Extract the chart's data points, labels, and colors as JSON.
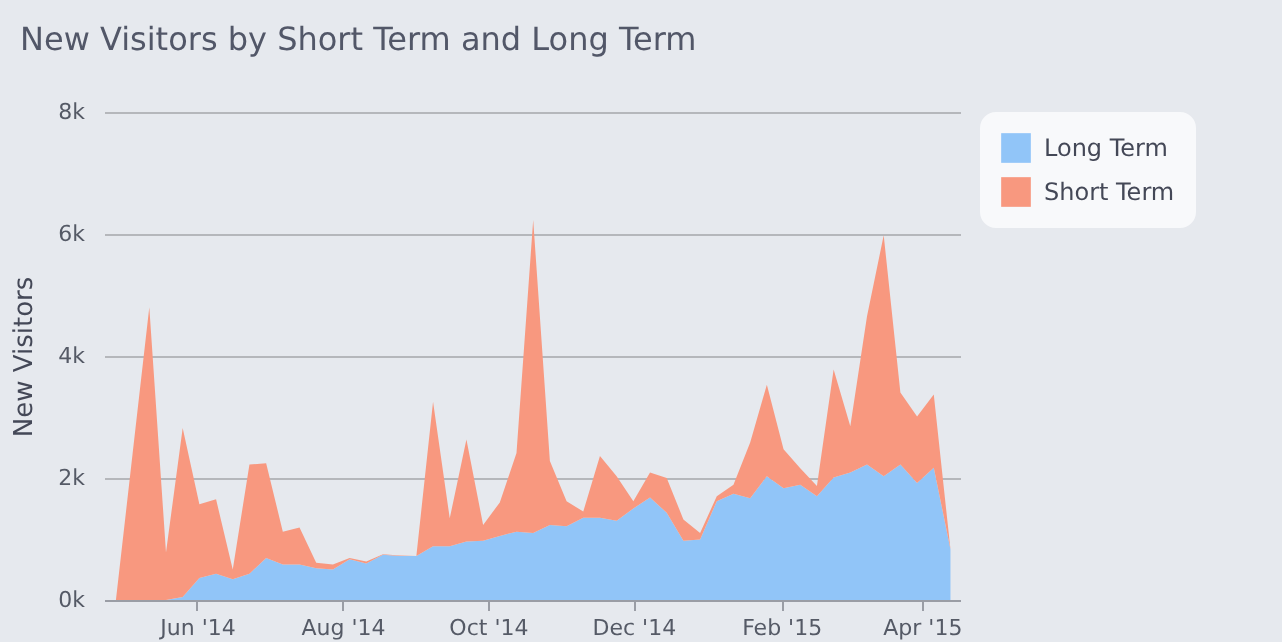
{
  "chart_data": {
    "type": "area",
    "stacked": true,
    "title": "New Visitors by Short Term and Long Term",
    "ylabel": "New Visitors",
    "x": [
      "2014-04-28",
      "2014-05-05",
      "2014-05-12",
      "2014-05-19",
      "2014-05-26",
      "2014-06-02",
      "2014-06-09",
      "2014-06-16",
      "2014-06-23",
      "2014-06-30",
      "2014-07-07",
      "2014-07-14",
      "2014-07-21",
      "2014-07-28",
      "2014-08-04",
      "2014-08-11",
      "2014-08-18",
      "2014-08-25",
      "2014-09-01",
      "2014-09-08",
      "2014-09-15",
      "2014-09-22",
      "2014-09-29",
      "2014-10-06",
      "2014-10-13",
      "2014-10-20",
      "2014-10-27",
      "2014-11-03",
      "2014-11-10",
      "2014-11-17",
      "2014-11-24",
      "2014-12-01",
      "2014-12-08",
      "2014-12-15",
      "2014-12-22",
      "2014-12-29",
      "2015-01-05",
      "2015-01-12",
      "2015-01-19",
      "2015-01-26",
      "2015-02-02",
      "2015-02-09",
      "2015-02-16",
      "2015-02-23",
      "2015-03-02",
      "2015-03-09",
      "2015-03-16",
      "2015-03-23",
      "2015-03-30",
      "2015-04-06",
      "2015-04-13"
    ],
    "series": [
      {
        "name": "Long Term",
        "color": "#91c5f8",
        "values": [
          0,
          0,
          0,
          0,
          50,
          360,
          430,
          340,
          430,
          690,
          580,
          580,
          520,
          500,
          670,
          600,
          740,
          720,
          720,
          880,
          880,
          960,
          970,
          1050,
          1120,
          1100,
          1230,
          1210,
          1350,
          1350,
          1300,
          1500,
          1680,
          1430,
          970,
          990,
          1620,
          1740,
          1670,
          2030,
          1830,
          1890,
          1700,
          2010,
          2090,
          2220,
          2030,
          2220,
          1920,
          2170,
          830
        ]
      },
      {
        "name": "Short Term",
        "color": "#f8987f",
        "values": [
          0,
          2400,
          4800,
          780,
          2770,
          1210,
          1220,
          160,
          1790,
          1550,
          540,
          610,
          90,
          80,
          20,
          30,
          10,
          10,
          0,
          2370,
          460,
          1670,
          260,
          550,
          1290,
          5130,
          1050,
          410,
          100,
          1010,
          730,
          120,
          410,
          570,
          350,
          110,
          80,
          150,
          910,
          1500,
          640,
          270,
          170,
          1770,
          760,
          2430,
          3950,
          1180,
          1090,
          1200,
          0
        ]
      }
    ],
    "xlim": [
      "2014-04-23",
      "2015-04-17"
    ],
    "xticks": [
      {
        "value": "2014-06-01",
        "label": "Jun '14"
      },
      {
        "value": "2014-08-01",
        "label": "Aug '14"
      },
      {
        "value": "2014-10-01",
        "label": "Oct '14"
      },
      {
        "value": "2014-12-01",
        "label": "Dec '14"
      },
      {
        "value": "2015-02-01",
        "label": "Feb '15"
      },
      {
        "value": "2015-04-01",
        "label": "Apr '15"
      }
    ],
    "ylim": [
      0,
      8000
    ],
    "yticks": [
      {
        "value": 0,
        "label": "0k"
      },
      {
        "value": 2000,
        "label": "2k"
      },
      {
        "value": 4000,
        "label": "4k"
      },
      {
        "value": 6000,
        "label": "6k"
      },
      {
        "value": 8000,
        "label": "8k"
      }
    ],
    "grid": "y",
    "legend": "top right"
  }
}
